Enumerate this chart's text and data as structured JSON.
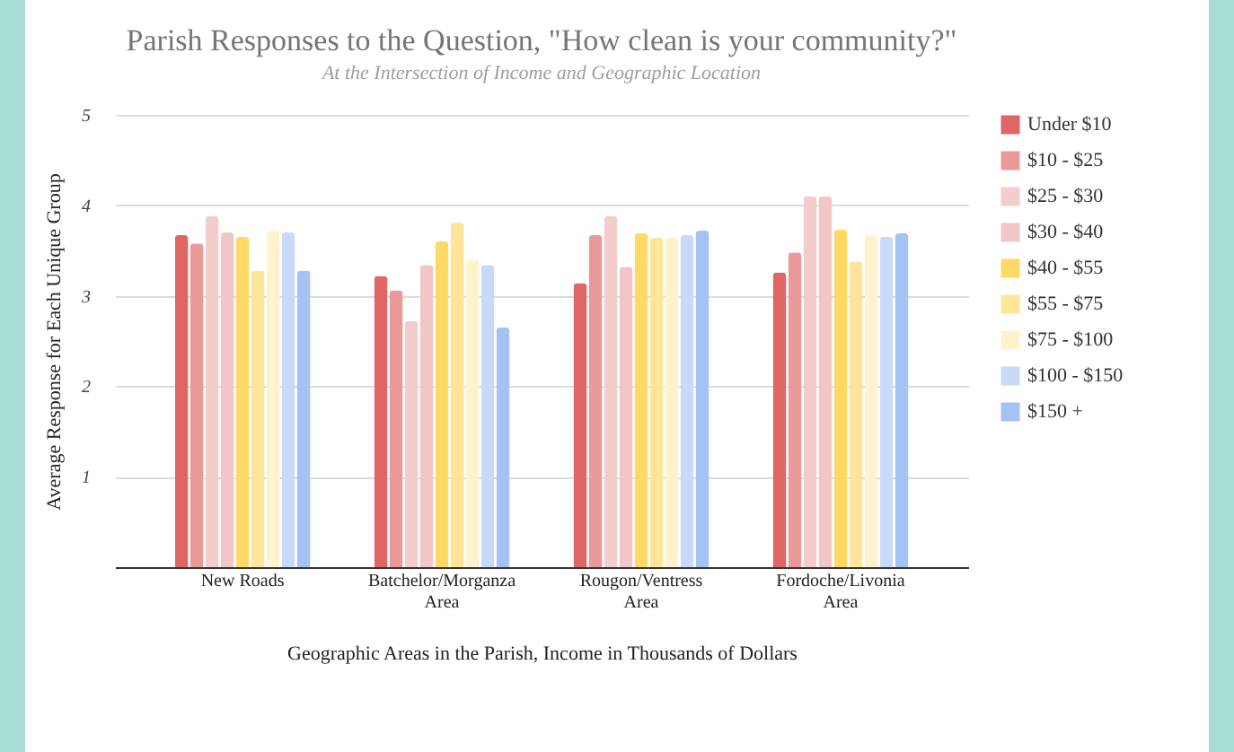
{
  "chart_data": {
    "type": "bar",
    "title": "Parish Responses to the Question, \"How clean is your community?\"",
    "subtitle": "At the Intersection of Income and Geographic Location",
    "xlabel": "Geographic Areas in the Parish, Income in Thousands of Dollars",
    "ylabel": "Average Response for Each Unique Group",
    "categories": [
      "New Roads",
      "Batchelor/Morganza Area",
      "Rougon/Ventress Area",
      "Fordoche/Livonia Area"
    ],
    "series": [
      {
        "name": "Under $10",
        "color": "#e06666",
        "values": [
          3.67,
          3.22,
          3.14,
          3.26
        ]
      },
      {
        "name": "$10 - $25",
        "color": "#ea9999",
        "values": [
          3.58,
          3.06,
          3.67,
          3.48
        ]
      },
      {
        "name": "$25 - $30",
        "color": "#f4cccc",
        "values": [
          3.88,
          2.72,
          3.88,
          4.1
        ]
      },
      {
        "name": "$30 - $40",
        "color": "#f2c6c6",
        "values": [
          3.7,
          3.34,
          3.32,
          4.1
        ]
      },
      {
        "name": "$40 - $55",
        "color": "#ffd966",
        "values": [
          3.65,
          3.6,
          3.69,
          3.73
        ]
      },
      {
        "name": "$55 - $75",
        "color": "#ffe599",
        "values": [
          3.28,
          3.81,
          3.64,
          3.38
        ]
      },
      {
        "name": "$75 - $100",
        "color": "#fff2cc",
        "values": [
          3.72,
          3.4,
          3.64,
          3.67
        ]
      },
      {
        "name": "$100  - $150",
        "color": "#c9daf8",
        "values": [
          3.7,
          3.34,
          3.67,
          3.65
        ]
      },
      {
        "name": "$150 +",
        "color": "#a4c2f4",
        "values": [
          3.28,
          2.65,
          3.72,
          3.69
        ]
      }
    ],
    "ylim": [
      0,
      5
    ],
    "yticks": [
      1,
      2,
      3,
      4,
      5
    ],
    "grid": "y",
    "legend": "right"
  }
}
